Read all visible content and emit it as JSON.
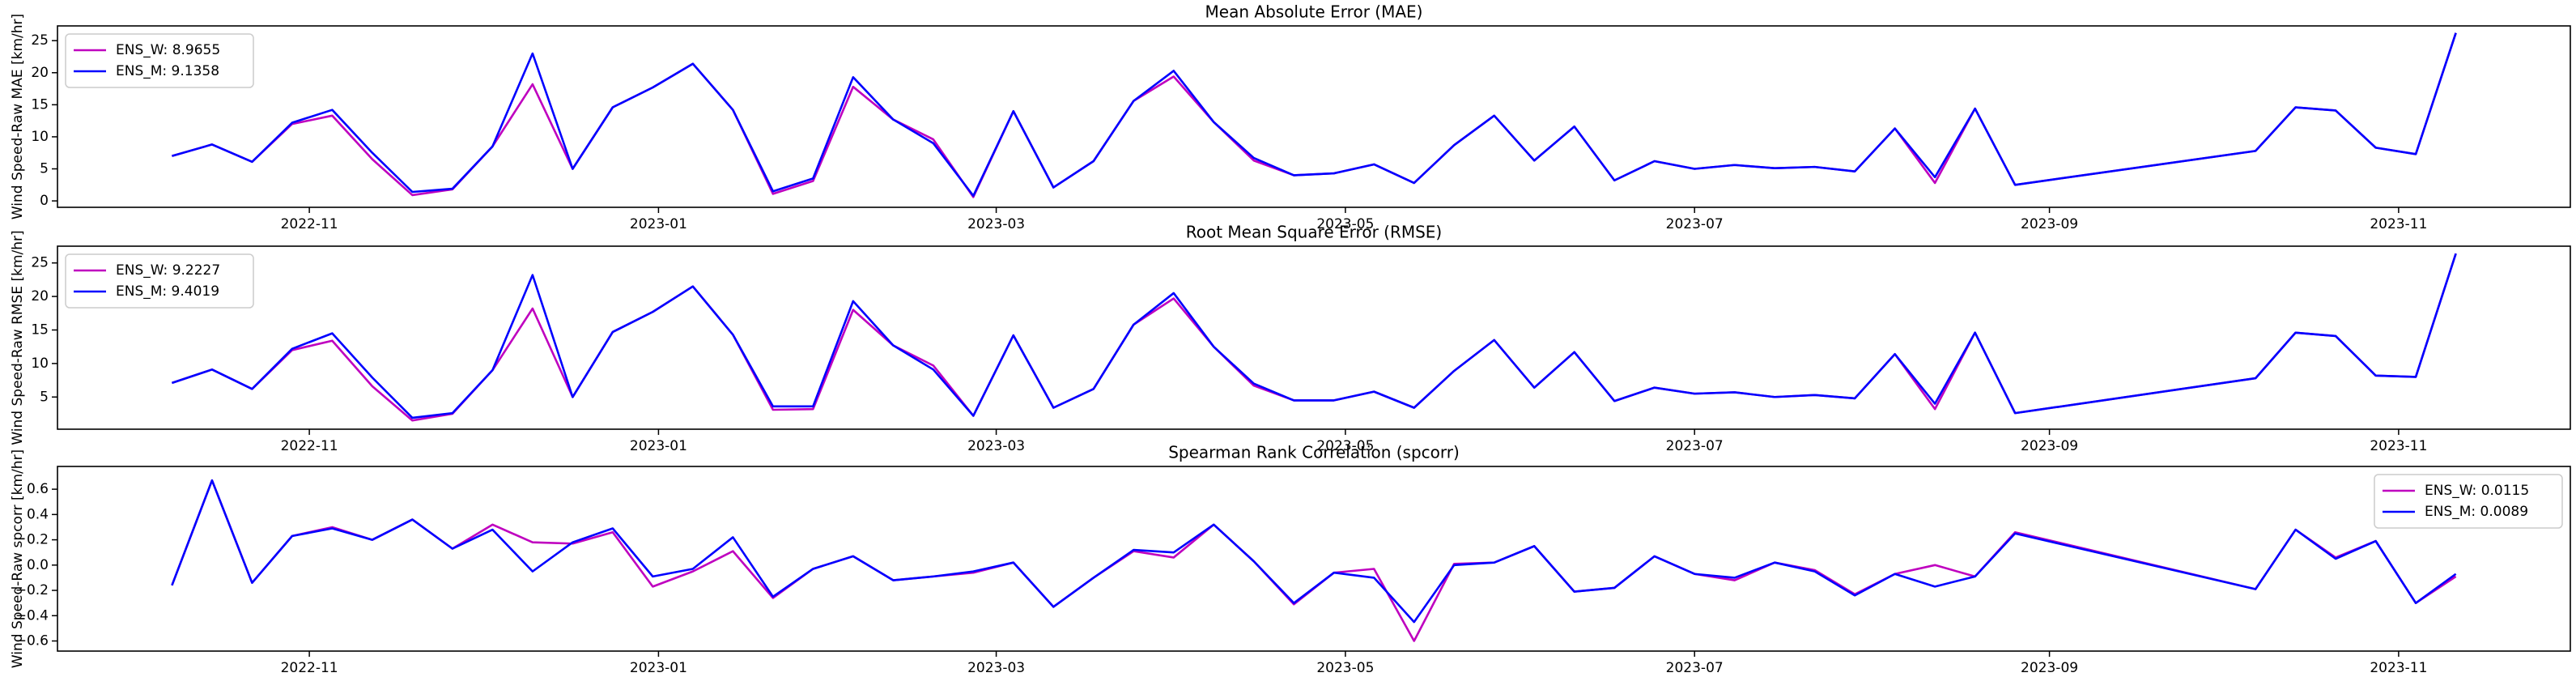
{
  "chart_data": [
    {
      "type": "line",
      "title": "Mean Absolute Error (MAE)",
      "ylabel": "Wind Speed-Raw MAE [km/hr]",
      "legend": "upper left",
      "x": [
        "2022-10-08",
        "2022-10-15",
        "2022-10-22",
        "2022-10-29",
        "2022-11-05",
        "2022-11-12",
        "2022-11-19",
        "2022-11-26",
        "2022-12-03",
        "2022-12-10",
        "2022-12-17",
        "2022-12-24",
        "2022-12-31",
        "2023-01-07",
        "2023-01-14",
        "2023-01-21",
        "2023-01-28",
        "2023-02-04",
        "2023-02-11",
        "2023-02-18",
        "2023-02-25",
        "2023-03-04",
        "2023-03-11",
        "2023-03-18",
        "2023-03-25",
        "2023-04-01",
        "2023-04-08",
        "2023-04-15",
        "2023-04-22",
        "2023-04-29",
        "2023-05-06",
        "2023-05-13",
        "2023-05-20",
        "2023-05-27",
        "2023-06-03",
        "2023-06-10",
        "2023-06-17",
        "2023-06-24",
        "2023-07-01",
        "2023-07-08",
        "2023-07-15",
        "2023-07-22",
        "2023-07-29",
        "2023-08-05",
        "2023-08-12",
        "2023-08-19",
        "2023-08-26",
        "2023-10-07",
        "2023-10-14",
        "2023-10-21",
        "2023-10-28",
        "2023-11-04",
        "2023-11-11"
      ],
      "series": [
        {
          "name": "ENS_W: 8.9655",
          "color": "#bf00bf",
          "values": [
            7.0,
            8.8,
            6.1,
            12.0,
            13.3,
            6.5,
            0.9,
            1.8,
            8.5,
            18.2,
            5.0,
            14.6,
            17.7,
            21.4,
            14.2,
            1.1,
            3.1,
            17.8,
            12.7,
            9.6,
            0.6,
            14.0,
            2.1,
            6.2,
            15.6,
            19.4,
            12.3,
            6.3,
            4.0,
            4.3,
            5.7,
            2.8,
            8.7,
            13.3,
            6.3,
            11.6,
            3.2,
            6.2,
            5.0,
            5.6,
            5.1,
            5.3,
            4.6,
            11.3,
            2.8,
            14.4,
            2.5,
            7.8,
            14.6,
            14.1,
            8.3,
            7.3,
            26.2
          ]
        },
        {
          "name": "ENS_M: 9.1358",
          "color": "#0000ff",
          "values": [
            7.0,
            8.8,
            6.1,
            12.2,
            14.2,
            7.5,
            1.4,
            1.9,
            8.5,
            23.0,
            5.0,
            14.6,
            17.7,
            21.4,
            14.2,
            1.5,
            3.5,
            19.3,
            12.7,
            9.0,
            0.8,
            14.0,
            2.1,
            6.2,
            15.6,
            20.3,
            12.3,
            6.7,
            4.0,
            4.3,
            5.7,
            2.8,
            8.7,
            13.3,
            6.3,
            11.6,
            3.2,
            6.2,
            5.0,
            5.6,
            5.1,
            5.3,
            4.6,
            11.3,
            3.7,
            14.4,
            2.5,
            7.8,
            14.6,
            14.1,
            8.3,
            7.3,
            26.2
          ]
        }
      ],
      "xlim": [
        "2022-09-18",
        "2023-12-01"
      ],
      "xticks": [
        {
          "value": "2022-11-01",
          "label": "2022-11"
        },
        {
          "value": "2023-01-01",
          "label": "2023-01"
        },
        {
          "value": "2023-03-01",
          "label": "2023-03"
        },
        {
          "value": "2023-05-01",
          "label": "2023-05"
        },
        {
          "value": "2023-07-01",
          "label": "2023-07"
        },
        {
          "value": "2023-09-01",
          "label": "2023-09"
        },
        {
          "value": "2023-11-01",
          "label": "2023-11"
        }
      ],
      "ylim": [
        -1,
        27.3
      ],
      "yticks": [
        0,
        5,
        10,
        15,
        20,
        25
      ]
    },
    {
      "type": "line",
      "title": "Root Mean Square Error (RMSE)",
      "ylabel": "Wind Speed-Raw RMSE [km/hr]",
      "legend": "upper left",
      "x": [
        "2022-10-08",
        "2022-10-15",
        "2022-10-22",
        "2022-10-29",
        "2022-11-05",
        "2022-11-12",
        "2022-11-19",
        "2022-11-26",
        "2022-12-03",
        "2022-12-10",
        "2022-12-17",
        "2022-12-24",
        "2022-12-31",
        "2023-01-07",
        "2023-01-14",
        "2023-01-21",
        "2023-01-28",
        "2023-02-04",
        "2023-02-11",
        "2023-02-18",
        "2023-02-25",
        "2023-03-04",
        "2023-03-11",
        "2023-03-18",
        "2023-03-25",
        "2023-04-01",
        "2023-04-08",
        "2023-04-15",
        "2023-04-22",
        "2023-04-29",
        "2023-05-06",
        "2023-05-13",
        "2023-05-20",
        "2023-05-27",
        "2023-06-03",
        "2023-06-10",
        "2023-06-17",
        "2023-06-24",
        "2023-07-01",
        "2023-07-08",
        "2023-07-15",
        "2023-07-22",
        "2023-07-29",
        "2023-08-05",
        "2023-08-12",
        "2023-08-19",
        "2023-08-26",
        "2023-10-07",
        "2023-10-14",
        "2023-10-21",
        "2023-10-28",
        "2023-11-04",
        "2023-11-11"
      ],
      "series": [
        {
          "name": "ENS_W: 9.2227",
          "color": "#bf00bf",
          "values": [
            7.1,
            9.1,
            6.2,
            12.0,
            13.4,
            6.6,
            1.5,
            2.5,
            9.0,
            18.2,
            5.0,
            14.7,
            17.7,
            21.5,
            14.3,
            3.1,
            3.2,
            18.0,
            12.7,
            9.7,
            2.2,
            14.2,
            3.4,
            6.2,
            15.8,
            19.7,
            12.5,
            6.7,
            4.5,
            4.5,
            5.8,
            3.4,
            8.9,
            13.5,
            6.4,
            11.7,
            4.4,
            6.4,
            5.5,
            5.7,
            5.0,
            5.3,
            4.8,
            11.4,
            3.2,
            14.6,
            2.6,
            7.8,
            14.6,
            14.1,
            8.2,
            8.0,
            26.4
          ]
        },
        {
          "name": "ENS_M: 9.4019",
          "color": "#0000ff",
          "values": [
            7.1,
            9.1,
            6.2,
            12.2,
            14.5,
            7.9,
            1.9,
            2.6,
            9.0,
            23.2,
            5.0,
            14.7,
            17.7,
            21.5,
            14.3,
            3.6,
            3.6,
            19.3,
            12.7,
            9.1,
            2.2,
            14.2,
            3.4,
            6.2,
            15.8,
            20.5,
            12.5,
            7.0,
            4.5,
            4.5,
            5.8,
            3.4,
            8.9,
            13.5,
            6.4,
            11.7,
            4.4,
            6.4,
            5.5,
            5.7,
            5.0,
            5.3,
            4.8,
            11.4,
            4.0,
            14.6,
            2.6,
            7.8,
            14.6,
            14.1,
            8.2,
            8.0,
            26.4
          ]
        }
      ],
      "xlim": [
        "2022-09-18",
        "2023-12-01"
      ],
      "xticks": [
        {
          "value": "2022-11-01",
          "label": "2022-11"
        },
        {
          "value": "2023-01-01",
          "label": "2023-01"
        },
        {
          "value": "2023-03-01",
          "label": "2023-03"
        },
        {
          "value": "2023-05-01",
          "label": "2023-05"
        },
        {
          "value": "2023-07-01",
          "label": "2023-07"
        },
        {
          "value": "2023-09-01",
          "label": "2023-09"
        },
        {
          "value": "2023-11-01",
          "label": "2023-11"
        }
      ],
      "ylim": [
        0.2,
        27.5
      ],
      "yticks": [
        5,
        10,
        15,
        20,
        25
      ]
    },
    {
      "type": "line",
      "title": "Spearman Rank Correlation (spcorr)",
      "ylabel": "Wind Speed-Raw spcorr [km/hr]",
      "legend": "upper right",
      "x": [
        "2022-10-08",
        "2022-10-15",
        "2022-10-22",
        "2022-10-29",
        "2022-11-05",
        "2022-11-12",
        "2022-11-19",
        "2022-11-26",
        "2022-12-03",
        "2022-12-10",
        "2022-12-17",
        "2022-12-24",
        "2022-12-31",
        "2023-01-07",
        "2023-01-14",
        "2023-01-21",
        "2023-01-28",
        "2023-02-04",
        "2023-02-11",
        "2023-02-18",
        "2023-02-25",
        "2023-03-04",
        "2023-03-11",
        "2023-03-18",
        "2023-03-25",
        "2023-04-01",
        "2023-04-08",
        "2023-04-15",
        "2023-04-22",
        "2023-04-29",
        "2023-05-06",
        "2023-05-13",
        "2023-05-20",
        "2023-05-27",
        "2023-06-03",
        "2023-06-10",
        "2023-06-17",
        "2023-06-24",
        "2023-07-01",
        "2023-07-08",
        "2023-07-15",
        "2023-07-22",
        "2023-07-29",
        "2023-08-05",
        "2023-08-12",
        "2023-08-19",
        "2023-08-26",
        "2023-10-07",
        "2023-10-14",
        "2023-10-21",
        "2023-10-28",
        "2023-11-04",
        "2023-11-11"
      ],
      "series": [
        {
          "name": "ENS_W: 0.0115",
          "color": "#bf00bf",
          "values": [
            -0.16,
            0.67,
            -0.14,
            0.23,
            0.3,
            0.2,
            0.36,
            0.13,
            0.32,
            0.18,
            0.17,
            0.26,
            -0.17,
            -0.05,
            0.11,
            -0.26,
            -0.03,
            0.07,
            -0.12,
            -0.09,
            -0.06,
            0.02,
            -0.33,
            -0.1,
            0.11,
            0.06,
            0.32,
            0.03,
            -0.31,
            -0.06,
            -0.03,
            -0.6,
            0.01,
            0.02,
            0.15,
            -0.21,
            -0.18,
            0.07,
            -0.07,
            -0.12,
            0.02,
            -0.04,
            -0.23,
            -0.07,
            0.0,
            -0.09,
            0.26,
            -0.19,
            0.28,
            0.06,
            0.19,
            -0.3,
            -0.09
          ]
        },
        {
          "name": "ENS_M: 0.0089",
          "color": "#0000ff",
          "values": [
            -0.16,
            0.67,
            -0.14,
            0.23,
            0.29,
            0.2,
            0.36,
            0.13,
            0.28,
            -0.05,
            0.18,
            0.29,
            -0.09,
            -0.03,
            0.22,
            -0.25,
            -0.03,
            0.07,
            -0.12,
            -0.09,
            -0.05,
            0.02,
            -0.33,
            -0.1,
            0.12,
            0.1,
            0.32,
            0.03,
            -0.3,
            -0.06,
            -0.1,
            -0.45,
            0.0,
            0.02,
            0.15,
            -0.21,
            -0.18,
            0.07,
            -0.07,
            -0.1,
            0.02,
            -0.05,
            -0.24,
            -0.07,
            -0.17,
            -0.09,
            0.25,
            -0.19,
            0.28,
            0.05,
            0.19,
            -0.3,
            -0.07
          ]
        }
      ],
      "xlim": [
        "2022-09-18",
        "2023-12-01"
      ],
      "xticks": [
        {
          "value": "2022-11-01",
          "label": "2022-11"
        },
        {
          "value": "2023-01-01",
          "label": "2023-01"
        },
        {
          "value": "2023-03-01",
          "label": "2023-03"
        },
        {
          "value": "2023-05-01",
          "label": "2023-05"
        },
        {
          "value": "2023-07-01",
          "label": "2023-07"
        },
        {
          "value": "2023-09-01",
          "label": "2023-09"
        },
        {
          "value": "2023-11-01",
          "label": "2023-11"
        }
      ],
      "ylim": [
        -0.68,
        0.78
      ],
      "yticks": [
        {
          "value": -0.6,
          "label": "−0.6"
        },
        {
          "value": -0.4,
          "label": "−0.4"
        },
        {
          "value": -0.2,
          "label": "−0.2"
        },
        {
          "value": 0,
          "label": "0.0"
        },
        {
          "value": 0.2,
          "label": "0.2"
        },
        {
          "value": 0.4,
          "label": "0.4"
        },
        {
          "value": 0.6,
          "label": "0.6"
        }
      ]
    }
  ]
}
